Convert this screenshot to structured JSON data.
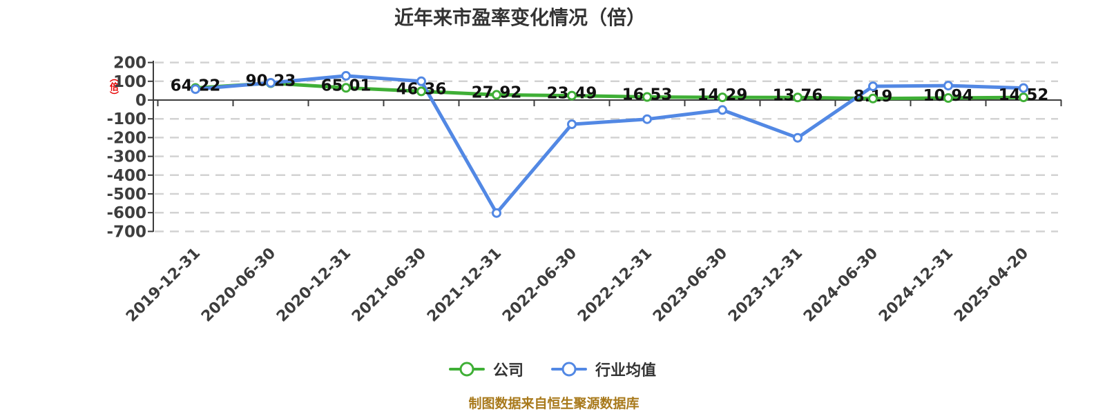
{
  "title": "近年来市盈率变化情况（倍）",
  "y_axis_unit_label": "（倍）",
  "footer": {
    "source_note": "制图数据来自恒生聚源数据库"
  },
  "colors": {
    "company_line": "#3faf36",
    "industry_line": "#5288e4",
    "grid_line": "#d2d2d2",
    "axis_line": "#3c3c3c",
    "tick_label": "#3d3d3d",
    "value_label": "#111111",
    "title_text": "#333333",
    "footer_text": "#a8791b",
    "unit_label": "#e60000"
  },
  "chart_data": {
    "type": "line",
    "title": "近年来市盈率变化情况（倍）",
    "xlabel": "",
    "ylabel": "（倍）",
    "ylim": [
      -700,
      200
    ],
    "y_ticks": [
      200,
      100,
      0,
      -100,
      -200,
      -300,
      -400,
      -500,
      -600,
      -700
    ],
    "grid": "horizontal dashed, zero axis solid",
    "legend_position": "bottom-center",
    "categories": [
      "2019-12-31",
      "2020-06-30",
      "2020-12-31",
      "2021-06-30",
      "2021-12-31",
      "2022-06-30",
      "2022-12-31",
      "2023-06-30",
      "2023-12-31",
      "2024-06-30",
      "2024-12-31",
      "2025-04-20"
    ],
    "series": [
      {
        "name": "公司",
        "color": "#3faf36",
        "values": [
          64.22,
          90.23,
          65.01,
          46.36,
          27.92,
          23.49,
          16.53,
          14.29,
          13.76,
          8.19,
          10.94,
          14.52
        ],
        "value_labels_shown": true
      },
      {
        "name": "行业均值",
        "color": "#5288e4",
        "values": [
          58,
          92,
          129,
          100,
          -602,
          -129,
          -102,
          -53,
          -201,
          73,
          77,
          64
        ],
        "value_labels_shown": false,
        "note": "values estimated from plot positions"
      }
    ]
  }
}
